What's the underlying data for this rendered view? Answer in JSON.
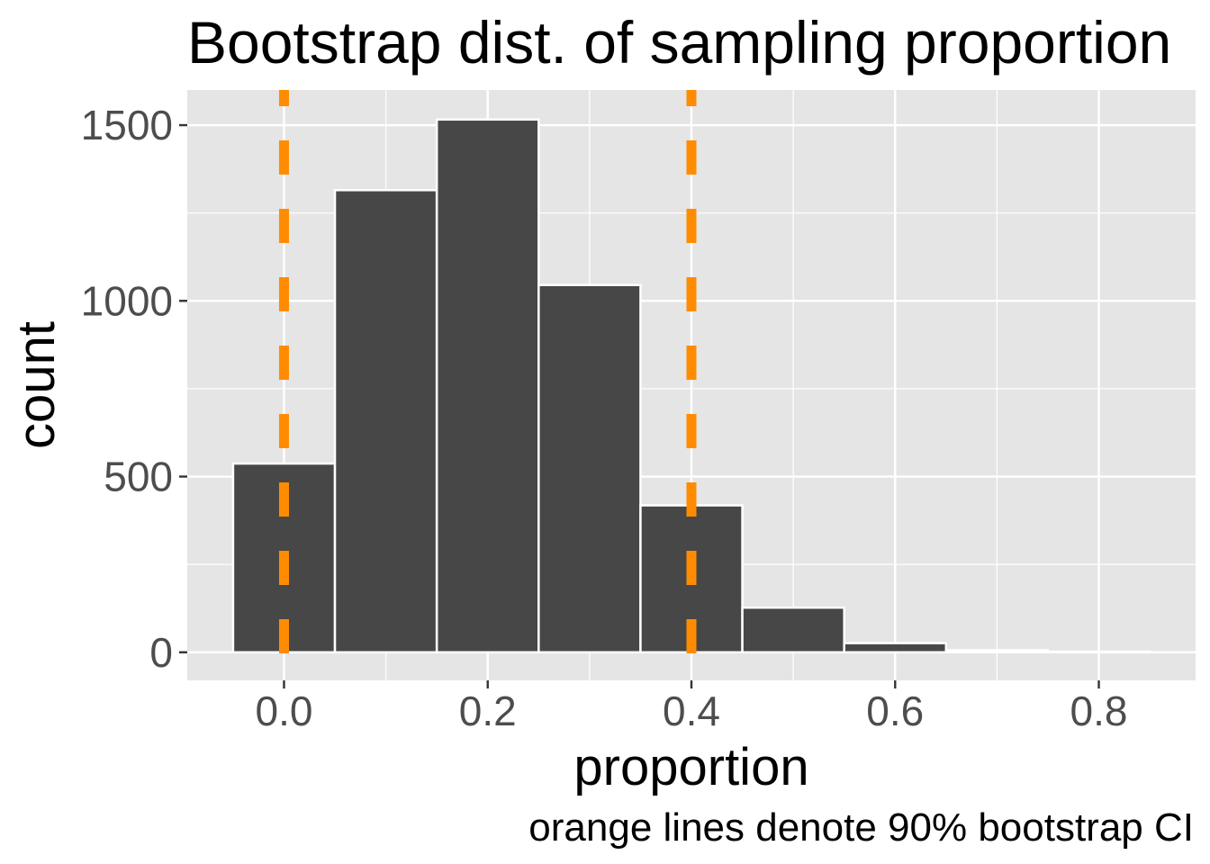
{
  "chart_data": {
    "type": "bar",
    "title": "Bootstrap dist. of sampling proportion",
    "xlabel": "proportion",
    "ylabel": "count",
    "caption": "orange lines denote 90% bootstrap CI",
    "bin_width": 0.1,
    "bin_centers": [
      0.0,
      0.1,
      0.2,
      0.3,
      0.4,
      0.5,
      0.6,
      0.7,
      0.8
    ],
    "values": [
      537,
      1315,
      1516,
      1045,
      418,
      127,
      26,
      6,
      2
    ],
    "xlim": [
      -0.095,
      0.895
    ],
    "ylim": [
      -80,
      1600
    ],
    "x_ticks": [
      0.0,
      0.2,
      0.4,
      0.6,
      0.8
    ],
    "x_tick_labels": [
      "0.0",
      "0.2",
      "0.4",
      "0.6",
      "0.8"
    ],
    "y_ticks": [
      0,
      500,
      1000,
      1500
    ],
    "y_tick_labels": [
      "0",
      "500",
      "1000",
      "1500"
    ],
    "ci_lines": [
      0.0,
      0.4
    ],
    "grid": true,
    "colors": {
      "panel_background": "#e5e5e5",
      "grid": "#ffffff",
      "bar_fill": "#474747",
      "bar_outline": "#ffffff",
      "ci_line": "#ff8c00"
    }
  }
}
